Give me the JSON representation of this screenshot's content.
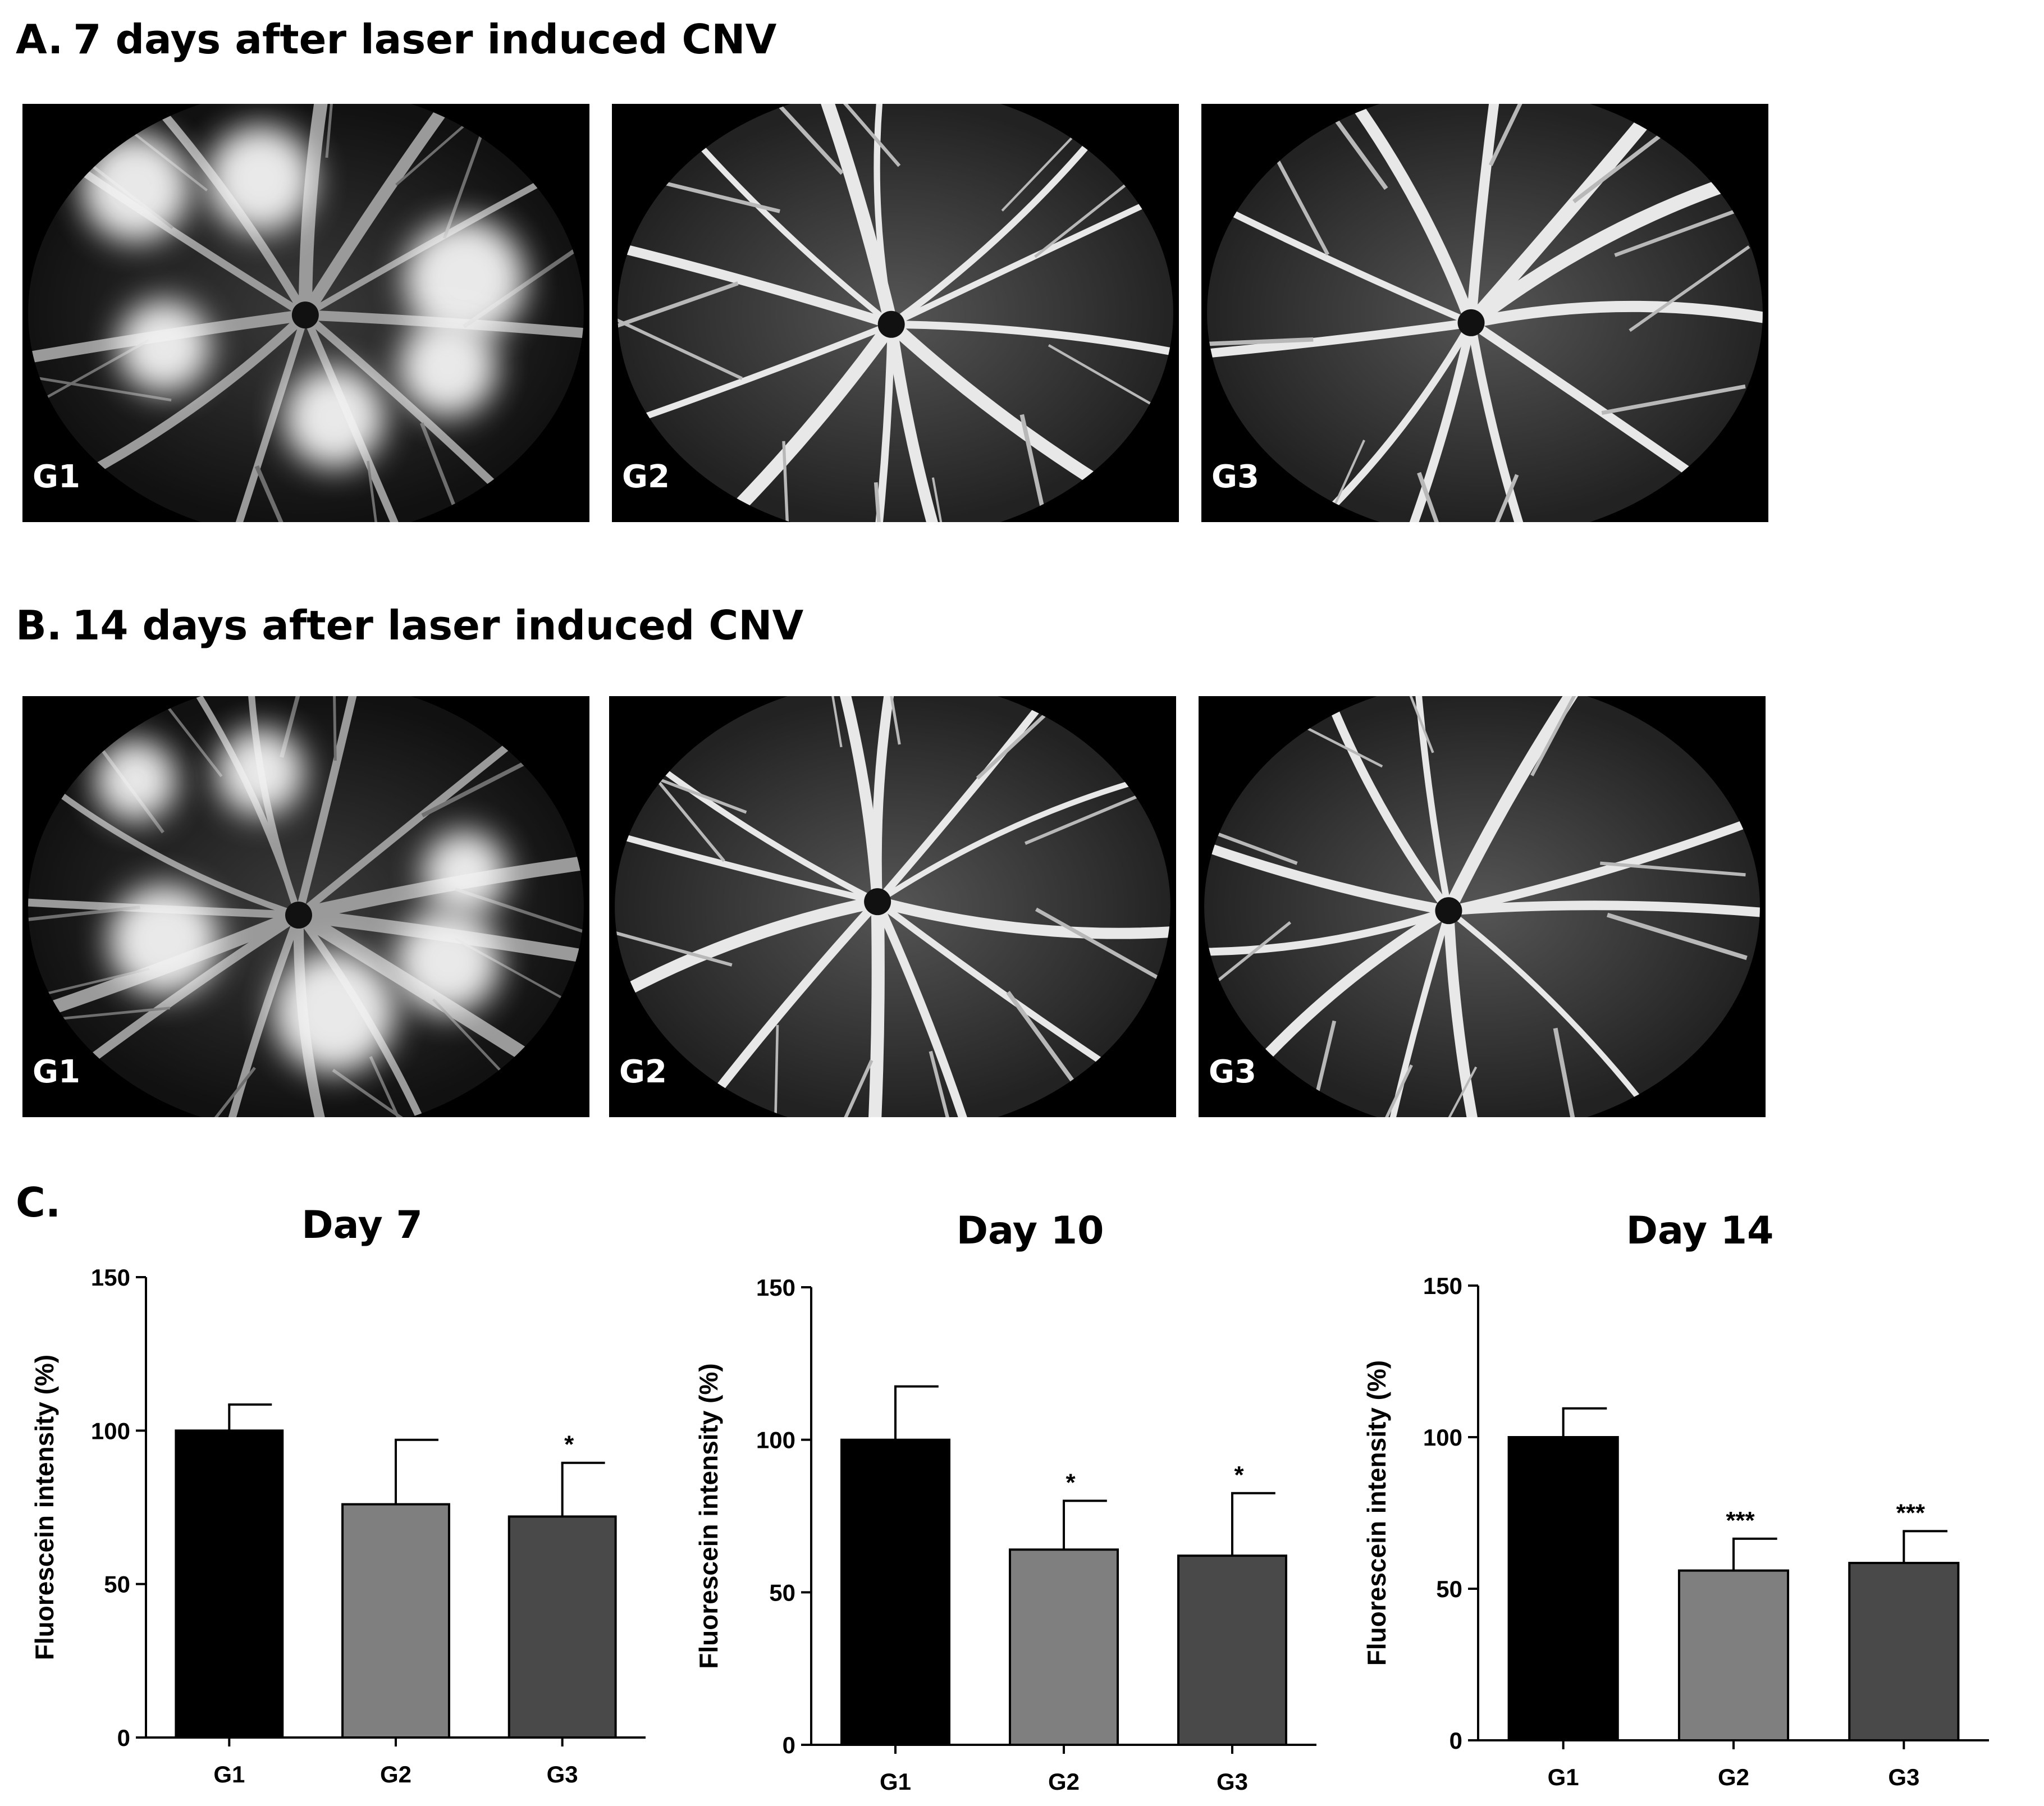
{
  "panel_a": {
    "letter": "A.",
    "title": "7 days after laser induced CNV",
    "images": [
      {
        "label": "G1",
        "style": "leaky"
      },
      {
        "label": "G2",
        "style": "vessels"
      },
      {
        "label": "G3",
        "style": "vessels"
      }
    ]
  },
  "panel_b": {
    "letter": "B.",
    "title": "14 days after laser induced CNV",
    "images": [
      {
        "label": "G1",
        "style": "leaky"
      },
      {
        "label": "G2",
        "style": "vessels"
      },
      {
        "label": "G3",
        "style": "vessels"
      }
    ]
  },
  "panel_c": {
    "letter": "C."
  },
  "chart_data": [
    {
      "type": "bar",
      "title": "Day 7",
      "ylabel": "Fluorescein intensity (%)",
      "xlabel": "",
      "ylim": [
        0,
        150
      ],
      "yticks": [
        0,
        50,
        100,
        150
      ],
      "categories": [
        "G1",
        "G2",
        "G3"
      ],
      "values": [
        100,
        76,
        72
      ],
      "errors": [
        8.5,
        21,
        17.5
      ],
      "significance": [
        "",
        "",
        "*"
      ],
      "colors": [
        "#000000",
        "#7f7f7f",
        "#494949"
      ],
      "grid": false
    },
    {
      "type": "bar",
      "title": "Day 10",
      "ylabel": "Fluorescein intensity (%)",
      "xlabel": "",
      "ylim": [
        0,
        150
      ],
      "yticks": [
        0,
        50,
        100,
        150
      ],
      "categories": [
        "G1",
        "G2",
        "G3"
      ],
      "values": [
        100,
        64,
        62
      ],
      "errors": [
        17.5,
        16,
        20.5
      ],
      "significance": [
        "",
        "*",
        "*"
      ],
      "colors": [
        "#000000",
        "#7f7f7f",
        "#494949"
      ],
      "grid": false
    },
    {
      "type": "bar",
      "title": "Day 14",
      "ylabel": "Fluorescein intensity (%)",
      "xlabel": "",
      "ylim": [
        0,
        150
      ],
      "yticks": [
        0,
        50,
        100,
        150
      ],
      "categories": [
        "G1",
        "G2",
        "G3"
      ],
      "values": [
        100,
        56,
        58.5
      ],
      "errors": [
        9.5,
        10.5,
        10.5
      ],
      "significance": [
        "",
        "***",
        "***"
      ],
      "colors": [
        "#000000",
        "#7f7f7f",
        "#494949"
      ],
      "grid": false
    }
  ]
}
